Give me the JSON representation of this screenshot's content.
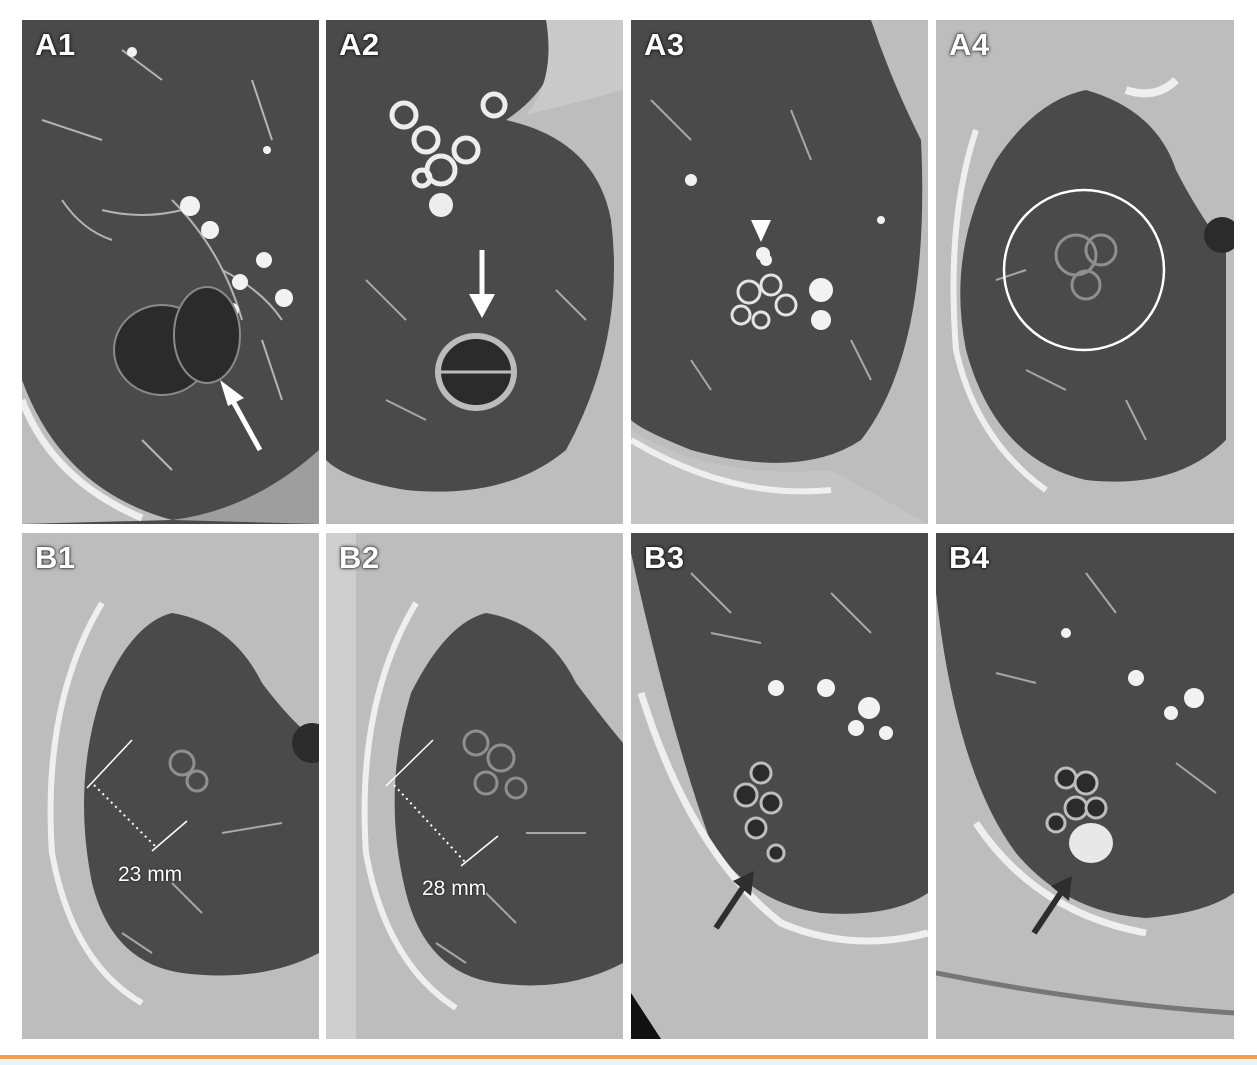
{
  "panels": [
    {
      "id": "A1",
      "label": "A1"
    },
    {
      "id": "A2",
      "label": "A2"
    },
    {
      "id": "A3",
      "label": "A3"
    },
    {
      "id": "A4",
      "label": "A4"
    },
    {
      "id": "B1",
      "label": "B1",
      "measurement": "23 mm"
    },
    {
      "id": "B2",
      "label": "B2",
      "measurement": "28 mm"
    },
    {
      "id": "B3",
      "label": "B3"
    },
    {
      "id": "B4",
      "label": "B4"
    }
  ],
  "colors": {
    "lung": "#474747",
    "soft_tissue": "#bdbdbd",
    "bone": "#f2f2f2",
    "white_arrow": "#ffffff",
    "dark_arrow": "#2e2e2e",
    "footer_rule": "#f2a047",
    "footer_band": "#eaf3fa"
  }
}
